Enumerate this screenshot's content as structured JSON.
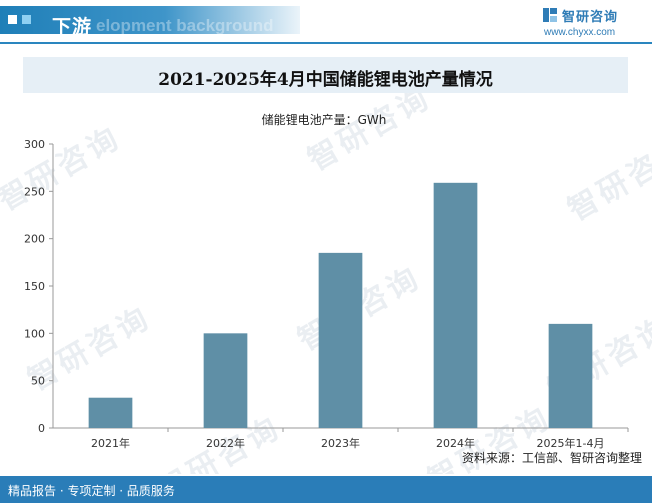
{
  "header": {
    "title": "下游",
    "background_text": "elopment background"
  },
  "brand": {
    "name": "智研咨询",
    "url": "www.chyxx.com"
  },
  "watermark": "智研咨询",
  "chart_data": {
    "type": "bar",
    "title": "2021-2025年4月中国储能锂电池产量情况",
    "legend": "储能锂电池产量：GWh",
    "categories": [
      "2021年",
      "2022年",
      "2023年",
      "2024年",
      "2025年1-4月"
    ],
    "values": [
      32,
      100,
      185,
      259,
      110
    ],
    "ylim": [
      0,
      300
    ],
    "yticks": [
      0,
      50,
      100,
      150,
      200,
      250,
      300
    ],
    "bar_color": "#5f8fa6",
    "grid": false
  },
  "footer": {
    "left": "精品报告 · 专项定制 · 品质服务",
    "source": "资料来源：工信部、智研咨询整理"
  },
  "colors": {
    "accent": "#2a7db8",
    "title_bar": "#e6eff6"
  }
}
